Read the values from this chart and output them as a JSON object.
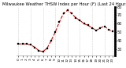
{
  "title": "Milwaukee Weather THSW Index per Hour (F) (Last 24 Hours)",
  "hours": [
    0,
    1,
    2,
    3,
    4,
    5,
    6,
    7,
    8,
    9,
    10,
    11,
    12,
    13,
    14,
    15,
    16,
    17,
    18,
    19,
    20,
    21,
    22,
    23
  ],
  "values": [
    36,
    36,
    36,
    35,
    32,
    28,
    27,
    31,
    40,
    50,
    62,
    72,
    76,
    72,
    67,
    64,
    60,
    58,
    55,
    52,
    55,
    57,
    53,
    51
  ],
  "line_color": "#cc0000",
  "marker": "s",
  "marker_color": "#000000",
  "marker_size": 1.5,
  "line_style": "--",
  "line_width": 0.8,
  "bg_color": "#ffffff",
  "plot_bg_color": "#ffffff",
  "grid_color": "#aaaaaa",
  "grid_style": ":",
  "ylim": [
    22,
    80
  ],
  "yticks": [
    30,
    40,
    50,
    60,
    70,
    80
  ],
  "ytick_labels": [
    "30",
    "40",
    "50",
    "60",
    "70",
    "80"
  ],
  "ylabel_fontsize": 3.5,
  "title_fontsize": 3.8,
  "tick_fontsize": 3.0,
  "vgrid_positions": [
    0,
    3,
    6,
    9,
    12,
    15,
    18,
    21,
    23
  ],
  "right_bar_color": "#000000",
  "right_bar_width": 2.5
}
